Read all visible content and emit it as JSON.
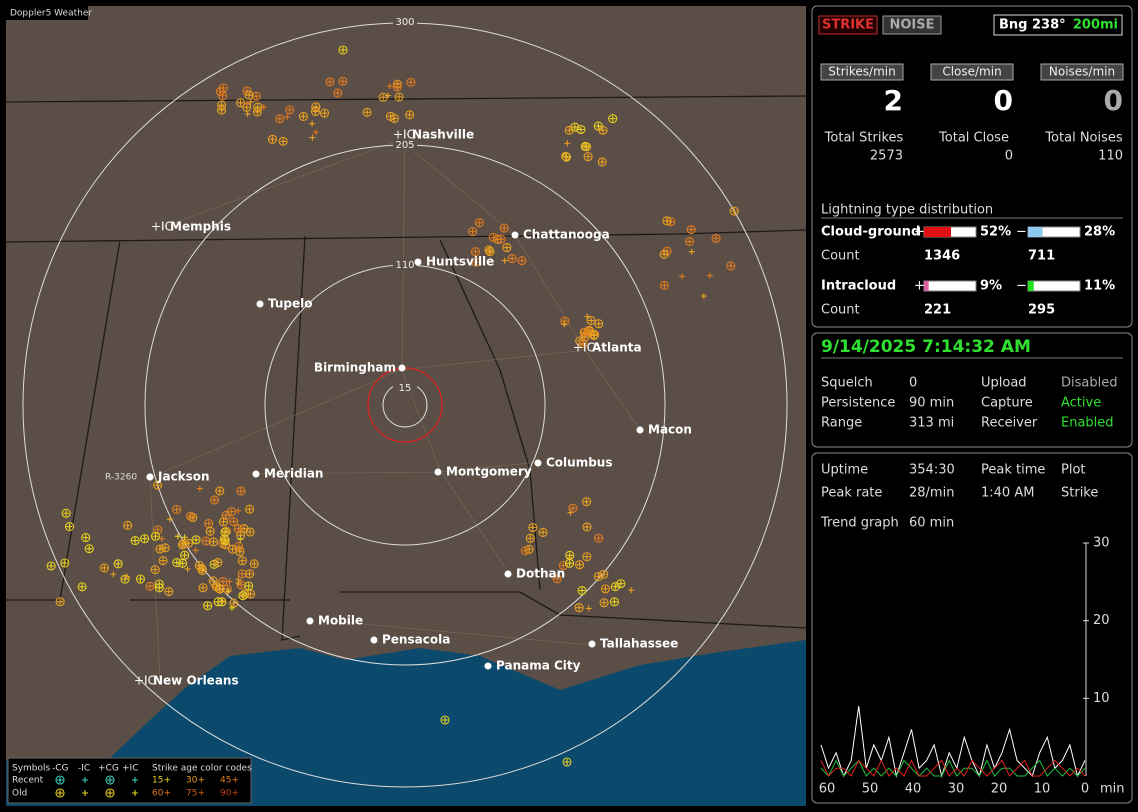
{
  "map": {
    "app_title": "Doppler5 Weather",
    "range_labels": [
      "300",
      "205",
      "110",
      "15"
    ],
    "station_label": "R-3260",
    "cities": [
      "Nashville",
      "Memphis",
      "Chattanooga",
      "Huntsville",
      "Tupelo",
      "Atlanta",
      "Birmingham",
      "Macon",
      "Jackson",
      "Meridian",
      "Montgomery",
      "Columbus",
      "Dothan",
      "Mobile",
      "Pensacola",
      "Tallahassee",
      "Panama City",
      "New Orleans"
    ]
  },
  "legend": {
    "symbols": "Symbols",
    "neg_cg": "-CG",
    "neg_ic": "-IC",
    "pos_cg": "+CG",
    "pos_ic": "+IC",
    "age_title": "Strike age color codes",
    "recent": "Recent",
    "old": "Old",
    "ages_recent": [
      "15+",
      "30+",
      "45+"
    ],
    "ages_old": [
      "60+",
      "75+",
      "90+"
    ]
  },
  "status": {
    "strike": "STRIKE",
    "noise": "NOISE",
    "bearing": "Bng 238°",
    "range": "200mi"
  },
  "rates": [
    {
      "label": "Strikes/min",
      "value": "2",
      "total_label": "Total Strikes",
      "total": "2573"
    },
    {
      "label": "Close/min",
      "value": "0",
      "total_label": "Total Close",
      "total": "0"
    },
    {
      "label": "Noises/min",
      "value": "0",
      "total_label": "Total Noises",
      "total": "110"
    }
  ],
  "distribution": {
    "title": "Lightning type distribution",
    "plus": "+",
    "minus": "−",
    "rows": [
      {
        "label": "Cloud-ground",
        "pos": 52,
        "pos_label": "52%",
        "neg": 28,
        "neg_label": "28%",
        "count_label": "Count",
        "pos_count": "1346",
        "neg_count": "711"
      },
      {
        "label": "Intracloud",
        "pos": 9,
        "pos_label": "9%",
        "neg": 11,
        "neg_label": "11%",
        "count_label": "Count",
        "pos_count": "221",
        "neg_count": "295"
      }
    ]
  },
  "clock": {
    "datetime": "9/14/2025 7:14:32 AM",
    "settings": [
      [
        "Squelch",
        "0",
        "Upload",
        "Disabled"
      ],
      [
        "Persistence",
        "90 min",
        "Capture",
        "Active"
      ],
      [
        "Range",
        "313 mi",
        "Receiver",
        "Enabled"
      ]
    ]
  },
  "stats": {
    "rows": [
      [
        "Uptime",
        "354:30",
        "Peak time",
        "Plot"
      ],
      [
        "Peak rate",
        "28/min",
        "1:40 AM",
        "Strike"
      ]
    ],
    "trend_label": "Trend graph",
    "trend_value": "60 min"
  },
  "trend": {
    "ylim": [
      0,
      30
    ],
    "yticks": [
      10,
      20,
      30
    ],
    "xlim": [
      60,
      0
    ],
    "xticks": [
      60,
      50,
      40,
      30,
      20,
      10,
      0
    ],
    "x_unit": "min",
    "series": [
      {
        "color": "#ffffff",
        "values": [
          4,
          1,
          3,
          0,
          2,
          9,
          1,
          4,
          2,
          5,
          0,
          3,
          6,
          1,
          2,
          4,
          0,
          3,
          1,
          5,
          2,
          0,
          4,
          1,
          3,
          6,
          2,
          1,
          0,
          3,
          5,
          1,
          2,
          4,
          0,
          2
        ]
      },
      {
        "color": "#20c040",
        "values": [
          1,
          0,
          2,
          0,
          1,
          2,
          0,
          1,
          0,
          1,
          0,
          2,
          1,
          0,
          1,
          0,
          0,
          2,
          0,
          1,
          1,
          0,
          2,
          0,
          1,
          1,
          0,
          0,
          1,
          2,
          0,
          1,
          0,
          1,
          0,
          1
        ]
      },
      {
        "color": "#e02020",
        "values": [
          2,
          0,
          1,
          1,
          0,
          2,
          1,
          0,
          2,
          0,
          1,
          0,
          2,
          0,
          0,
          1,
          2,
          0,
          1,
          0,
          2,
          1,
          0,
          1,
          2,
          0,
          1,
          2,
          0,
          0,
          1,
          2,
          1,
          0,
          1,
          0
        ]
      }
    ]
  }
}
